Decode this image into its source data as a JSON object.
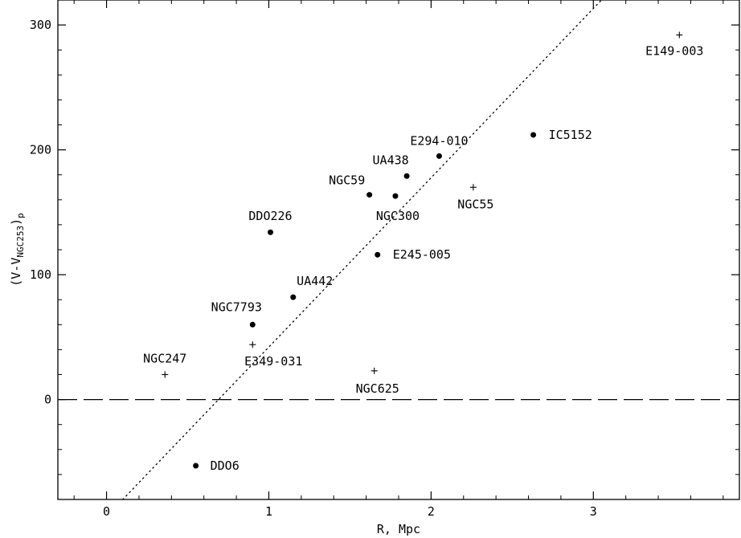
{
  "chart_data": {
    "type": "scatter",
    "title": "",
    "xlabel": "R, Mpc",
    "ylabel": "(V-V",
    "ylabel_sub": "NGC253",
    "ylabel_suffix": ")",
    "ylabel_sub2": "p",
    "xlim": [
      -0.3,
      3.9
    ],
    "ylim": [
      -80,
      320
    ],
    "x_ticks": [
      0,
      1,
      2,
      3
    ],
    "y_ticks": [
      0,
      100,
      200,
      300
    ],
    "grid": false,
    "reference_lines": [
      {
        "type": "horizontal",
        "y": 0,
        "style": "dashed"
      },
      {
        "type": "line",
        "style": "dotted",
        "points": [
          [
            0.1,
            -80
          ],
          [
            3.05,
            320
          ]
        ]
      }
    ],
    "series": [
      {
        "marker": "dot",
        "points": [
          {
            "label": "IC5152",
            "x": 2.63,
            "y": 212
          },
          {
            "label": "E294-010",
            "x": 2.05,
            "y": 195
          },
          {
            "label": "UA438",
            "x": 1.85,
            "y": 179
          },
          {
            "label": "NGC59",
            "x": 1.62,
            "y": 164
          },
          {
            "label": "NGC300",
            "x": 1.78,
            "y": 163
          },
          {
            "label": "DDO226",
            "x": 1.01,
            "y": 134
          },
          {
            "label": "E245-005",
            "x": 1.67,
            "y": 116
          },
          {
            "label": "UA442",
            "x": 1.15,
            "y": 82
          },
          {
            "label": "NGC7793",
            "x": 0.9,
            "y": 60
          },
          {
            "label": "DDO6",
            "x": 0.55,
            "y": -53
          }
        ]
      },
      {
        "marker": "plus",
        "points": [
          {
            "label": "E149-003",
            "x": 3.53,
            "y": 292
          },
          {
            "label": "NGC55",
            "x": 2.26,
            "y": 170
          },
          {
            "label": "E349-031",
            "x": 0.9,
            "y": 44
          },
          {
            "label": "NGC247",
            "x": 0.36,
            "y": 20
          },
          {
            "label": "NGC625",
            "x": 1.65,
            "y": 23
          }
        ]
      }
    ]
  }
}
